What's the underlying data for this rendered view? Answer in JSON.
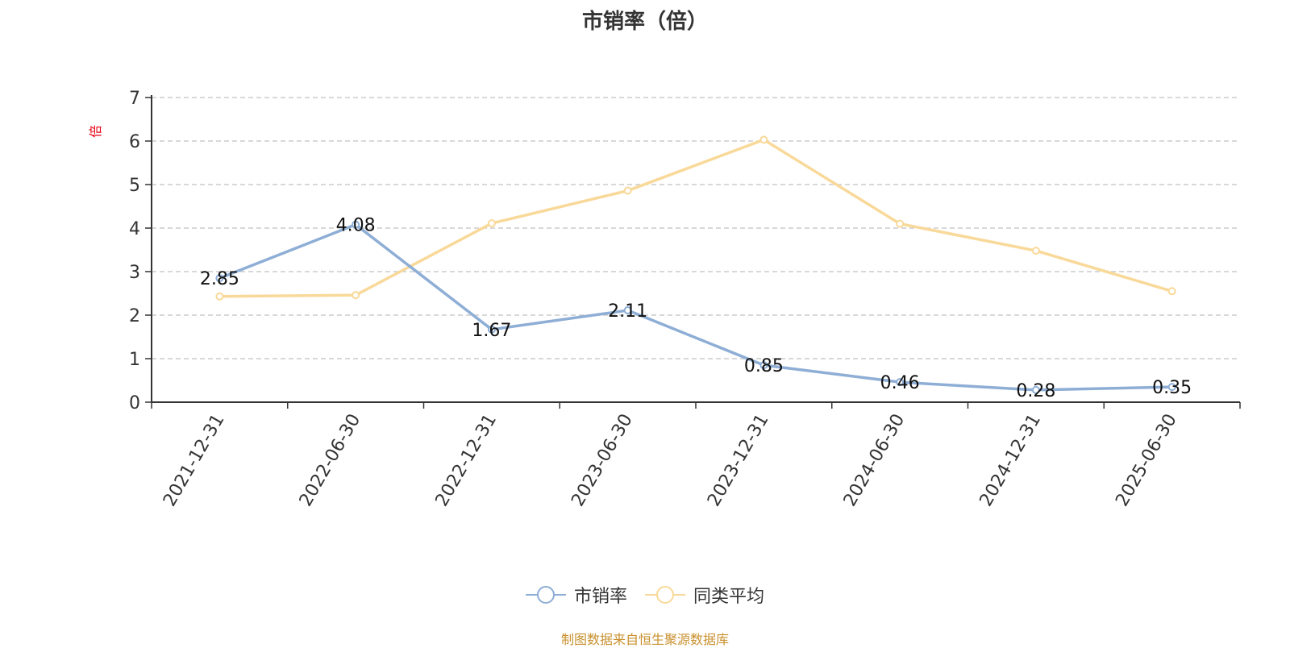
{
  "chart_data": {
    "type": "line",
    "title": "市销率（倍）",
    "ylabel": "倍",
    "xlabel": "",
    "categories": [
      "2021-12-31",
      "2022-06-30",
      "2022-12-31",
      "2023-06-30",
      "2023-12-31",
      "2024-06-30",
      "2024-12-31",
      "2025-06-30"
    ],
    "ylim": [
      0,
      7
    ],
    "yticks": [
      0,
      1,
      2,
      3,
      4,
      5,
      6,
      7
    ],
    "grid": true,
    "legend_position": "bottom",
    "series": [
      {
        "name": "市销率",
        "color": "#8eaed6",
        "values": [
          2.85,
          4.08,
          1.67,
          2.11,
          0.85,
          0.46,
          0.28,
          0.35
        ],
        "labels": [
          "2.85",
          "4.08",
          "1.67",
          "2.11",
          "0.85",
          "0.46",
          "0.28",
          "0.35"
        ],
        "show_labels": true
      },
      {
        "name": "同类平均",
        "color": "#f9d999",
        "values": [
          2.43,
          2.46,
          4.11,
          4.86,
          6.03,
          4.1,
          3.48,
          2.55
        ],
        "show_labels": false
      }
    ]
  },
  "ylabel_color": "#e60012",
  "source_text": "制图数据来自恒生聚源数据库",
  "source_color": "#c9902e"
}
